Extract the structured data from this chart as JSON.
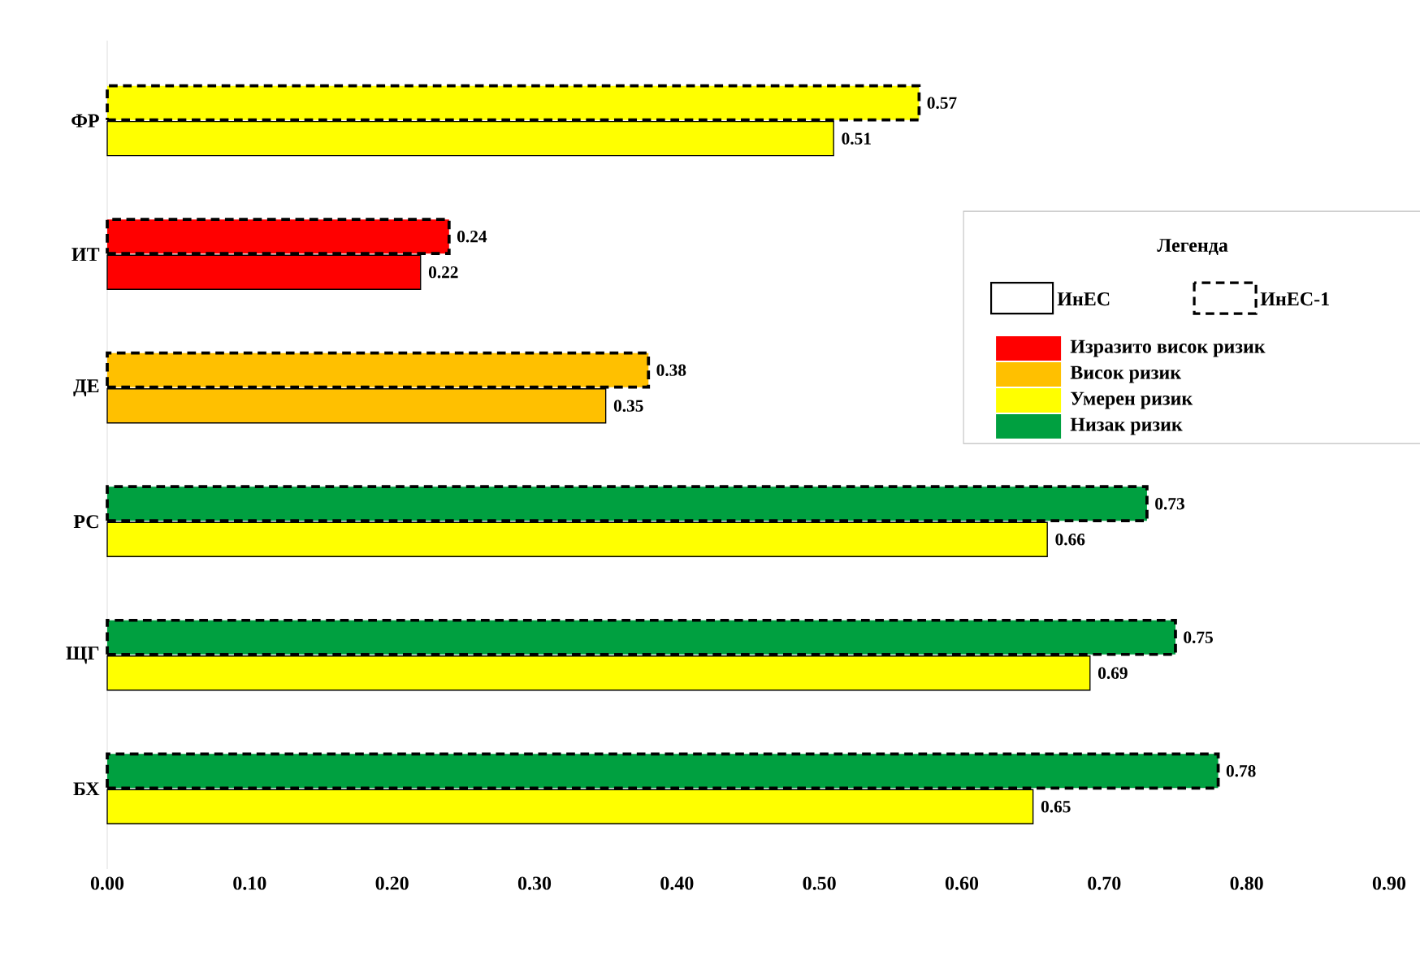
{
  "chart_data": {
    "type": "bar",
    "orientation": "horizontal",
    "legend_title": "Легенда",
    "legend": "right",
    "data_labels": true,
    "categories": [
      "ФР",
      "ИТ",
      "ДЕ",
      "РС",
      "ЩГ",
      "БХ"
    ],
    "xlim": [
      0,
      0.9
    ],
    "xticks": [
      {
        "value": 0,
        "label": "0.00"
      },
      {
        "value": 0.1,
        "label": "0.10"
      },
      {
        "value": 0.2,
        "label": "0.20"
      },
      {
        "value": 0.3,
        "label": "0.30"
      },
      {
        "value": 0.4,
        "label": "0.40"
      },
      {
        "value": 0.5,
        "label": "0.50"
      },
      {
        "value": 0.6,
        "label": "0.60"
      },
      {
        "value": 0.7,
        "label": "0.70"
      },
      {
        "value": 0.8,
        "label": "0.80"
      },
      {
        "value": 0.9,
        "label": "0.90"
      }
    ],
    "series": [
      {
        "name": "ИнЕС-1",
        "line_style": "dashed",
        "colors": [
          "#ffff00",
          "#ff0000",
          "#ffc000",
          "#00a040",
          "#00a040",
          "#00a040"
        ],
        "values": [
          0.57,
          0.24,
          0.38,
          0.73,
          0.75,
          0.78
        ]
      },
      {
        "name": "ИнЕС",
        "line_style": "solid",
        "colors": [
          "#ffff00",
          "#ff0000",
          "#ffc000",
          "#ffff00",
          "#ffff00",
          "#ffff00"
        ],
        "values": [
          0.51,
          0.22,
          0.35,
          0.66,
          0.69,
          0.65
        ]
      },
      {
        "name": "Изразито висок ризик",
        "color": "#ff0000",
        "values": [
          null,
          null,
          null,
          null,
          null,
          null
        ]
      },
      {
        "name": "Висок ризик",
        "color": "#ffc000",
        "values": [
          null,
          null,
          null,
          null,
          null,
          null
        ]
      },
      {
        "name": "Умерен ризик",
        "color": "#ffff00",
        "values": [
          null,
          null,
          null,
          null,
          null,
          null
        ]
      },
      {
        "name": "Низак ризик",
        "color": "#00a040",
        "values": [
          null,
          null,
          null,
          null,
          null,
          null
        ]
      }
    ]
  }
}
